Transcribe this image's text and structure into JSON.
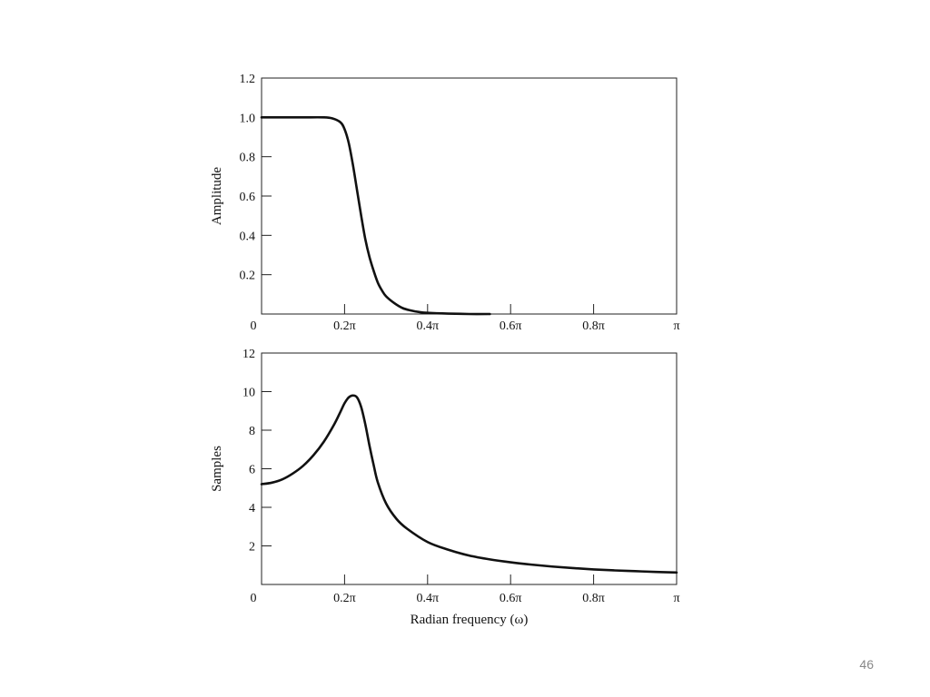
{
  "slide": {
    "number": "46"
  },
  "chart_data": [
    {
      "type": "line",
      "title": "",
      "xlabel": "",
      "ylabel": "Amplitude",
      "xlim": [
        0,
        1
      ],
      "ylim": [
        0,
        1.2
      ],
      "xticks": [
        {
          "value": 0,
          "label": "0"
        },
        {
          "value": 0.2,
          "label": "0.2π"
        },
        {
          "value": 0.4,
          "label": "0.4π"
        },
        {
          "value": 0.6,
          "label": "0.6π"
        },
        {
          "value": 0.8,
          "label": "0.8π"
        },
        {
          "value": 1.0,
          "label": "π"
        }
      ],
      "yticks": [
        {
          "value": 0.2,
          "label": "0.2"
        },
        {
          "value": 0.4,
          "label": "0.4"
        },
        {
          "value": 0.6,
          "label": "0.6"
        },
        {
          "value": 0.8,
          "label": "0.8"
        },
        {
          "value": 1.0,
          "label": "1.0"
        },
        {
          "value": 1.2,
          "label": "1.2"
        }
      ],
      "series": [
        {
          "x": [
            0,
            0.05,
            0.1,
            0.15,
            0.17,
            0.19,
            0.2,
            0.21,
            0.22,
            0.23,
            0.24,
            0.25,
            0.26,
            0.27,
            0.28,
            0.29,
            0.3,
            0.32,
            0.34,
            0.36,
            0.38,
            0.4,
            0.45,
            0.5,
            0.55
          ],
          "y": [
            1.0,
            1.0,
            1.0,
            1.0,
            0.995,
            0.975,
            0.94,
            0.87,
            0.76,
            0.63,
            0.5,
            0.38,
            0.29,
            0.22,
            0.16,
            0.12,
            0.09,
            0.055,
            0.03,
            0.018,
            0.01,
            0.006,
            0.002,
            0.0,
            0.0
          ]
        }
      ],
      "grid": false
    },
    {
      "type": "line",
      "title": "",
      "xlabel": "Radian frequency (ω)",
      "ylabel": "Samples",
      "xlim": [
        0,
        1
      ],
      "ylim": [
        0,
        12
      ],
      "xticks": [
        {
          "value": 0,
          "label": "0"
        },
        {
          "value": 0.2,
          "label": "0.2π"
        },
        {
          "value": 0.4,
          "label": "0.4π"
        },
        {
          "value": 0.6,
          "label": "0.6π"
        },
        {
          "value": 0.8,
          "label": "0.8π"
        },
        {
          "value": 1.0,
          "label": "π"
        }
      ],
      "yticks": [
        {
          "value": 2,
          "label": "2"
        },
        {
          "value": 4,
          "label": "4"
        },
        {
          "value": 6,
          "label": "6"
        },
        {
          "value": 8,
          "label": "8"
        },
        {
          "value": 10,
          "label": "10"
        },
        {
          "value": 12,
          "label": "12"
        }
      ],
      "series": [
        {
          "x": [
            0,
            0.025,
            0.05,
            0.075,
            0.1,
            0.125,
            0.15,
            0.175,
            0.19,
            0.2,
            0.21,
            0.22,
            0.23,
            0.24,
            0.25,
            0.26,
            0.27,
            0.28,
            0.3,
            0.325,
            0.35,
            0.4,
            0.45,
            0.5,
            0.55,
            0.6,
            0.65,
            0.7,
            0.75,
            0.8,
            0.85,
            0.9,
            0.95,
            1.0
          ],
          "y": [
            5.2,
            5.28,
            5.45,
            5.75,
            6.15,
            6.7,
            7.4,
            8.3,
            8.95,
            9.4,
            9.7,
            9.8,
            9.7,
            9.2,
            8.3,
            7.2,
            6.2,
            5.3,
            4.2,
            3.4,
            2.9,
            2.2,
            1.8,
            1.5,
            1.3,
            1.15,
            1.03,
            0.93,
            0.85,
            0.78,
            0.73,
            0.69,
            0.65,
            0.62
          ]
        }
      ],
      "grid": false
    }
  ]
}
